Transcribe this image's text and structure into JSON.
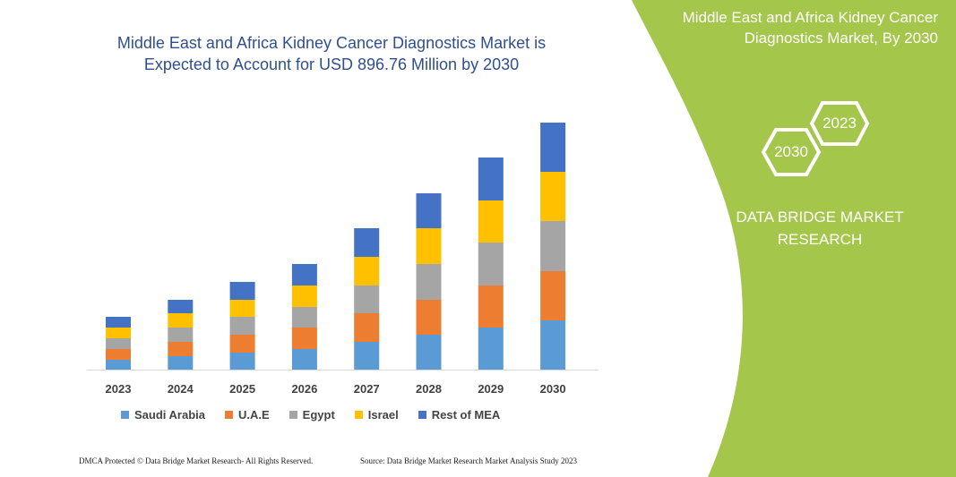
{
  "title": "Middle East and Africa Kidney Cancer Diagnostics Market is Expected to Account for USD 896.76 Million by 2030",
  "side_panel": {
    "title": "Middle East and Africa Kidney Cancer Diagnostics Market, By 2030",
    "hex_1": "2023",
    "hex_2": "2030",
    "brand": "DATA BRIDGE MARKET RESEARCH",
    "color": "#a4c64a"
  },
  "footer": {
    "left": "DMCA Protected © Data Bridge Market Research- All Rights Reserved.",
    "right": "Source: Data Bridge Market Research Market Analysis Study 2023"
  },
  "chart_data": {
    "type": "bar",
    "stacked": true,
    "grid": false,
    "legend_position": "bottom",
    "categories": [
      "2023",
      "2024",
      "2025",
      "2026",
      "2027",
      "2028",
      "2029",
      "2030"
    ],
    "series": [
      {
        "name": "Saudi Arabia",
        "color": "#5b9bd5",
        "values": [
          11,
          15,
          19,
          23,
          31,
          39,
          47,
          55
        ]
      },
      {
        "name": "U.A.E",
        "color": "#ed7d31",
        "values": [
          12,
          16,
          20,
          24,
          32,
          39,
          47,
          55
        ]
      },
      {
        "name": "Egypt",
        "color": "#a5a5a5",
        "values": [
          12,
          16,
          20,
          23,
          31,
          40,
          48,
          56
        ]
      },
      {
        "name": "Israel",
        "color": "#ffc000",
        "values": [
          12,
          16,
          19,
          24,
          32,
          40,
          47,
          55
        ]
      },
      {
        "name": "Rest of MEA",
        "color": "#4472c4",
        "values": [
          12,
          15,
          20,
          24,
          32,
          39,
          48,
          55
        ]
      }
    ]
  }
}
